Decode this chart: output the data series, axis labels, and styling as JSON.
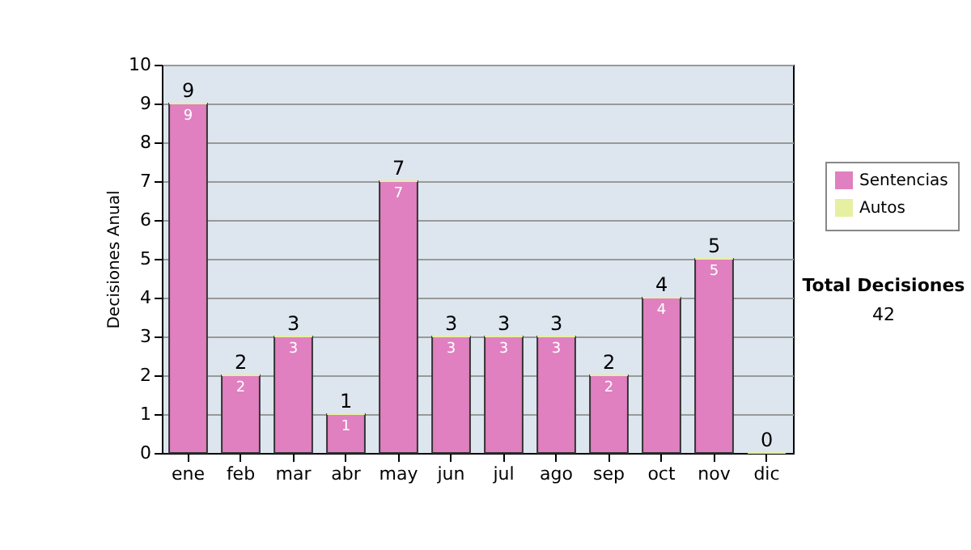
{
  "chart_data": {
    "type": "bar",
    "ylabel": "Decisiones Anual",
    "categories": [
      "ene",
      "feb",
      "mar",
      "abr",
      "may",
      "jun",
      "jul",
      "ago",
      "sep",
      "oct",
      "nov",
      "dic"
    ],
    "stacked": true,
    "series": [
      {
        "name": "Sentencias",
        "color": "#e080c0",
        "values": [
          9,
          2,
          3,
          1,
          7,
          3,
          3,
          3,
          2,
          4,
          5,
          0
        ],
        "value_labels": [
          "9",
          "2",
          "3",
          "1",
          "7",
          "3",
          "3",
          "3",
          "2",
          "4",
          "5",
          null
        ]
      },
      {
        "name": "Autos",
        "color": "#e6f0a0",
        "values": [
          0,
          0,
          0,
          0,
          0,
          0,
          0,
          0,
          0,
          0,
          0,
          0
        ]
      }
    ],
    "totals": [
      "9",
      "2",
      "3",
      "1",
      "7",
      "3",
      "3",
      "3",
      "2",
      "4",
      "5",
      "0"
    ],
    "ylim": [
      0,
      10
    ],
    "yticks": [
      0,
      1,
      2,
      3,
      4,
      5,
      6,
      7,
      8,
      9,
      10
    ],
    "grid": "y",
    "legend": "right",
    "annotations": [
      "Total Decisiones",
      "42"
    ]
  }
}
